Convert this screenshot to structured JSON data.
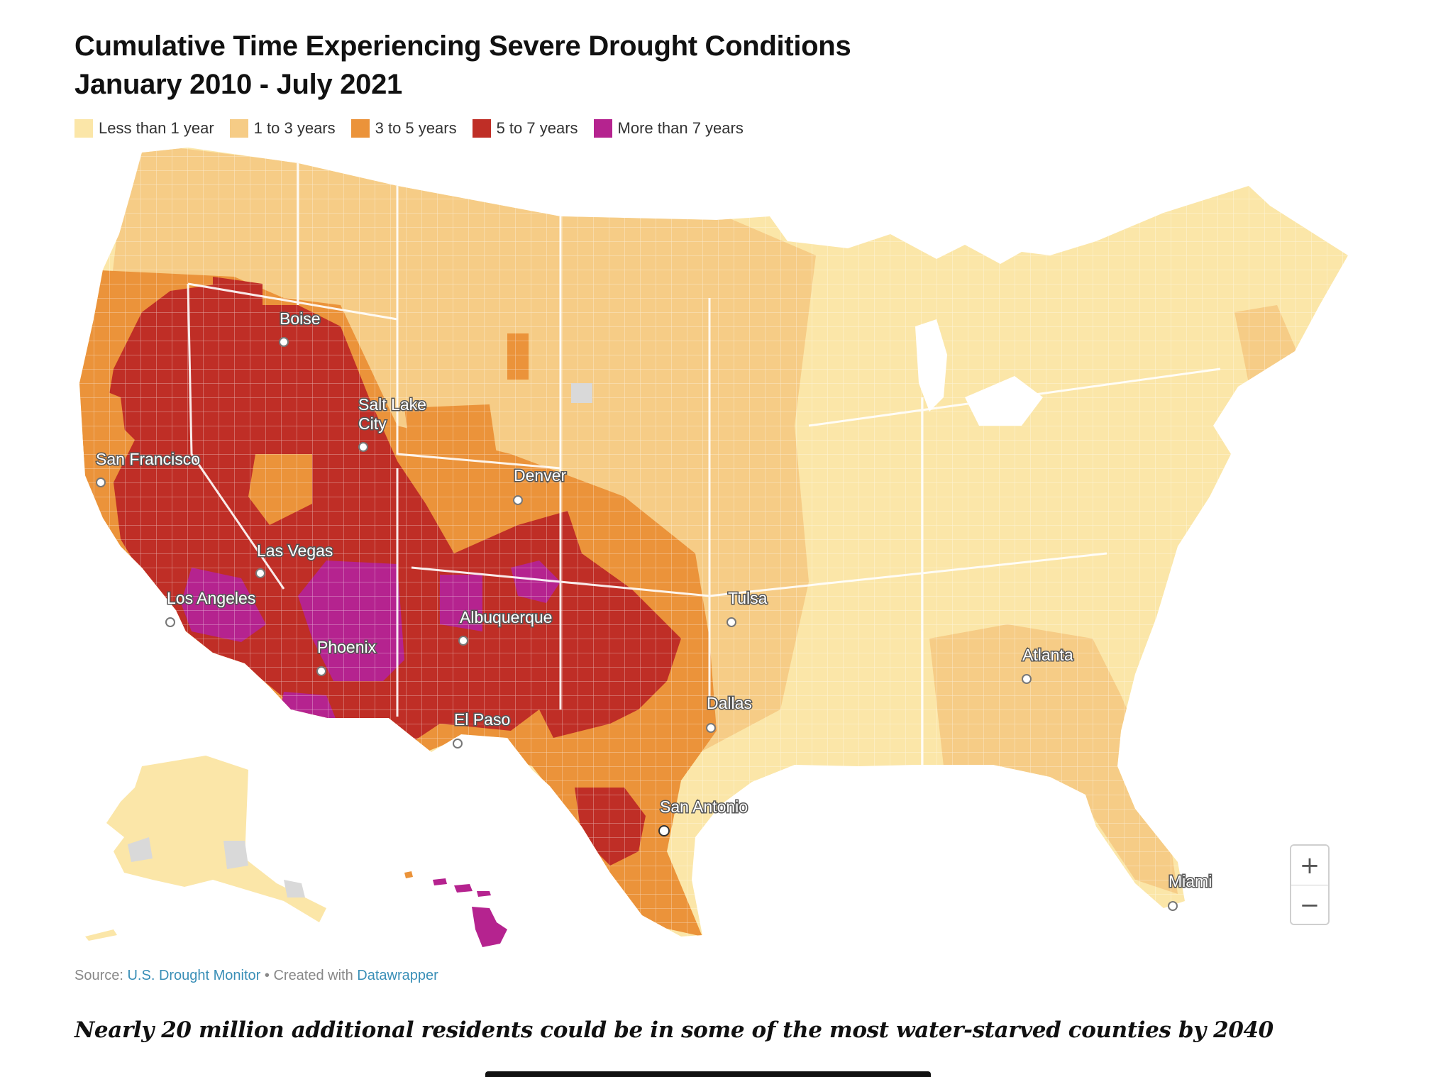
{
  "title": {
    "line1": "Cumulative Time Experiencing Severe Drought Conditions",
    "line2": "January 2010 - July 2021"
  },
  "legend": [
    {
      "label": "Less than 1 year",
      "color": "#fbe6a8"
    },
    {
      "label": "1 to 3 years",
      "color": "#f6cc86"
    },
    {
      "label": "3 to 5 years",
      "color": "#eb933a"
    },
    {
      "label": "5 to 7 years",
      "color": "#bf2e26"
    },
    {
      "label": "More than 7 years",
      "color": "#b5238f"
    }
  ],
  "cities": [
    {
      "name": "Boise"
    },
    {
      "name": "Salt Lake"
    },
    {
      "name": "City"
    },
    {
      "name": "San Francisco"
    },
    {
      "name": "Denver"
    },
    {
      "name": "Las Vegas"
    },
    {
      "name": "Los Angeles"
    },
    {
      "name": "Tulsa"
    },
    {
      "name": "Albuquerque"
    },
    {
      "name": "Phoenix"
    },
    {
      "name": "Atlanta"
    },
    {
      "name": "Dallas"
    },
    {
      "name": "El Paso"
    },
    {
      "name": "San Antonio"
    },
    {
      "name": "Miami"
    }
  ],
  "zoom": {
    "in_label": "+",
    "out_label": "−"
  },
  "footer": {
    "source_prefix": "Source: ",
    "source_link": "U.S. Drought Monitor",
    "separator": " • Created with ",
    "tool_link": "Datawrapper"
  },
  "subhead": "Nearly 20 million additional residents could be in some of the most water-starved counties by 2040"
}
